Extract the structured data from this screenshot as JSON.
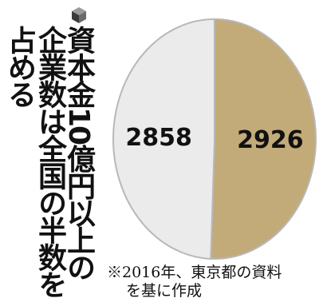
{
  "title": {
    "column_1": "資本金10億円以上の",
    "column_2": "企業数は全国の半数を",
    "column_3": "占める",
    "icon": "cube-icon"
  },
  "note": {
    "line_1": "※2016年、東京都の資料",
    "line_2": "を基に作成"
  },
  "chart_data": {
    "type": "pie",
    "slices": [
      {
        "label": "2926",
        "value": 2926,
        "color": "#c2ab78"
      },
      {
        "label": "2858",
        "value": 2858,
        "color": "#ebebeb"
      }
    ],
    "start": "top",
    "direction": "clockwise",
    "border_color": "#b8b8b8",
    "legend": "none"
  }
}
